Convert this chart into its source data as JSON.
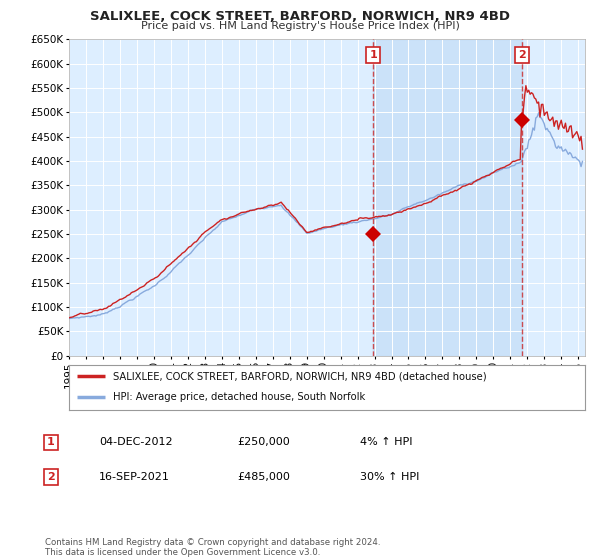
{
  "title": "SALIXLEE, COCK STREET, BARFORD, NORWICH, NR9 4BD",
  "subtitle": "Price paid vs. HM Land Registry's House Price Index (HPI)",
  "hpi_line_color": "#88aadd",
  "price_line_color": "#cc2222",
  "marker_color": "#cc0000",
  "background_color": "#ffffff",
  "plot_bg_color": "#ddeeff",
  "grid_color": "#ffffff",
  "ylim": [
    0,
    650000
  ],
  "yticks": [
    0,
    50000,
    100000,
    150000,
    200000,
    250000,
    300000,
    350000,
    400000,
    450000,
    500000,
    550000,
    600000,
    650000
  ],
  "year_start": 1995,
  "year_end": 2025,
  "transaction1_x": 2012.92,
  "transaction1_price": 250000,
  "transaction1_pct": "4%",
  "transaction1_date": "04-DEC-2012",
  "transaction2_x": 2021.71,
  "transaction2_price": 485000,
  "transaction2_pct": "30%",
  "transaction2_date": "16-SEP-2021",
  "legend_label1": "SALIXLEE, COCK STREET, BARFORD, NORWICH, NR9 4BD (detached house)",
  "legend_label2": "HPI: Average price, detached house, South Norfolk",
  "footnote": "Contains HM Land Registry data © Crown copyright and database right 2024.\nThis data is licensed under the Open Government Licence v3.0."
}
